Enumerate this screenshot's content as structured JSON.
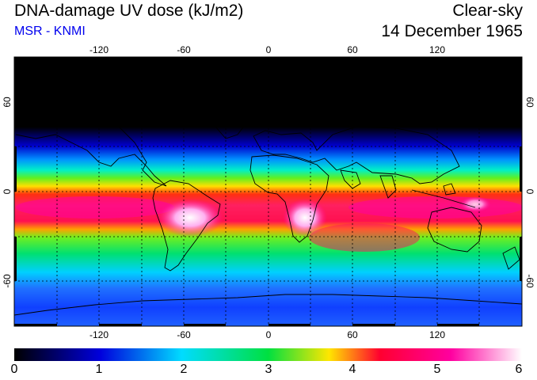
{
  "header": {
    "title": "DNA-damage UV dose (kJ/m2)",
    "source": "MSR - KNMI",
    "sky_condition": "Clear-sky",
    "date": "14 December 1965"
  },
  "map": {
    "projection": "equirectangular",
    "lon_ticks": [
      "-120",
      "-60",
      "0",
      "60",
      "120"
    ],
    "lat_ticks": [
      "60",
      "0",
      "-60"
    ],
    "gridlines": "dotted every 30 degrees"
  },
  "colorbar": {
    "labels": [
      "0",
      "1",
      "2",
      "3",
      "4",
      "5",
      "6"
    ],
    "stops": [
      "#000000",
      "#0000dd",
      "#00dcff",
      "#00e040",
      "#ffe600",
      "#ff0030",
      "#ff00a0",
      "#ffffff"
    ]
  }
}
